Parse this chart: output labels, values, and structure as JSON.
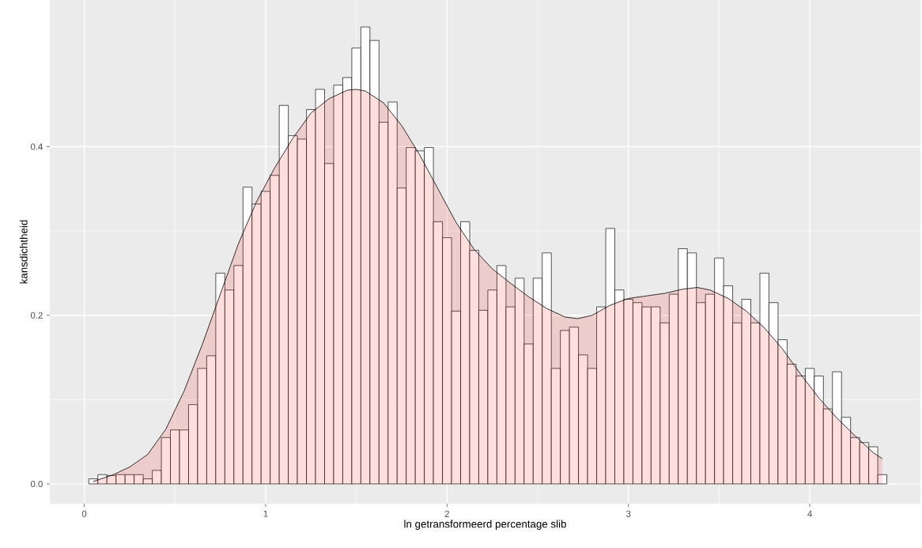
{
  "chart_data": {
    "type": "histogram",
    "xlabel": "ln getransformeerd percentage slib",
    "ylabel": "kansdichtheid",
    "xlim": [
      -0.19,
      4.61
    ],
    "ylim": [
      -0.0235,
      0.574
    ],
    "xticks": [
      0,
      1,
      2,
      3,
      4
    ],
    "yticks": [
      {
        "value": 0,
        "label": "0.0"
      },
      {
        "value": 0.2,
        "label": "0.2"
      },
      {
        "value": 0.4,
        "label": "0.4"
      }
    ],
    "grid": true,
    "series": [
      {
        "color": "#ffffff",
        "bins": [
          0.025,
          0.075,
          0.125,
          0.175,
          0.225,
          0.275,
          0.325,
          0.375,
          0.425,
          0.475,
          0.525,
          0.575,
          0.625,
          0.675,
          0.725,
          0.775,
          0.825,
          0.875,
          0.925,
          0.975,
          1.025,
          1.075,
          1.125,
          1.175,
          1.225,
          1.275,
          1.325,
          1.375,
          1.425,
          1.475,
          1.525,
          1.575,
          1.625,
          1.675,
          1.725,
          1.775,
          1.825,
          1.875,
          1.925,
          1.975,
          2.025,
          2.075,
          2.125,
          2.175,
          2.225,
          2.275,
          2.325,
          2.375,
          2.425,
          2.475,
          2.525,
          2.575,
          2.625,
          2.675,
          2.725,
          2.775,
          2.825,
          2.875,
          2.925,
          2.975,
          3.025,
          3.075,
          3.125,
          3.175,
          3.225,
          3.275,
          3.325,
          3.375,
          3.425,
          3.475,
          3.525,
          3.575,
          3.625,
          3.675,
          3.725,
          3.775,
          3.825,
          3.875,
          3.925,
          3.975,
          4.025,
          4.075,
          4.125,
          4.175,
          4.225,
          4.275,
          4.325,
          4.375,
          4.425
        ],
        "values": [
          0.006,
          0.011,
          0.01,
          0.011,
          0.011,
          0.011,
          0.006,
          0.016,
          0.055,
          0.064,
          0.064,
          0.094,
          0.137,
          0.152,
          0.25,
          0.23,
          0.259,
          0.352,
          0.332,
          0.347,
          0.366,
          0.449,
          0.413,
          0.409,
          0.444,
          0.468,
          0.38,
          0.473,
          0.482,
          0.517,
          0.542,
          0.526,
          0.429,
          0.453,
          0.351,
          0.399,
          0.395,
          0.399,
          0.311,
          0.292,
          0.205,
          0.311,
          0.277,
          0.206,
          0.23,
          0.259,
          0.21,
          0.244,
          0.166,
          0.244,
          0.274,
          0.137,
          0.182,
          0.186,
          0.153,
          0.137,
          0.21,
          0.303,
          0.23,
          0.219,
          0.215,
          0.21,
          0.21,
          0.191,
          0.225,
          0.279,
          0.274,
          0.215,
          0.225,
          0.268,
          0.235,
          0.191,
          0.219,
          0.191,
          0.25,
          0.215,
          0.171,
          0.142,
          0.128,
          0.137,
          0.128,
          0.089,
          0.133,
          0.079,
          0.055,
          0.049,
          0.044,
          0.011
        ]
      },
      {
        "type": "area",
        "color": "#ff0000",
        "x": [
          0.05,
          0.15,
          0.25,
          0.35,
          0.45,
          0.55,
          0.65,
          0.75,
          0.85,
          0.95,
          1.05,
          1.15,
          1.25,
          1.35,
          1.45,
          1.5,
          1.55,
          1.65,
          1.75,
          1.85,
          1.95,
          2.05,
          2.15,
          2.25,
          2.35,
          2.45,
          2.55,
          2.65,
          2.72,
          2.8,
          2.9,
          3.0,
          3.1,
          3.2,
          3.3,
          3.38,
          3.45,
          3.55,
          3.65,
          3.75,
          3.85,
          3.95,
          4.05,
          4.15,
          4.25,
          4.35,
          4.4
        ],
        "values": [
          0.003,
          0.01,
          0.02,
          0.035,
          0.065,
          0.11,
          0.165,
          0.225,
          0.285,
          0.335,
          0.375,
          0.41,
          0.44,
          0.457,
          0.467,
          0.468,
          0.466,
          0.452,
          0.425,
          0.39,
          0.35,
          0.31,
          0.278,
          0.255,
          0.238,
          0.222,
          0.208,
          0.198,
          0.196,
          0.2,
          0.212,
          0.22,
          0.223,
          0.226,
          0.231,
          0.233,
          0.23,
          0.22,
          0.205,
          0.185,
          0.16,
          0.13,
          0.102,
          0.078,
          0.057,
          0.037,
          0.03
        ]
      }
    ]
  }
}
